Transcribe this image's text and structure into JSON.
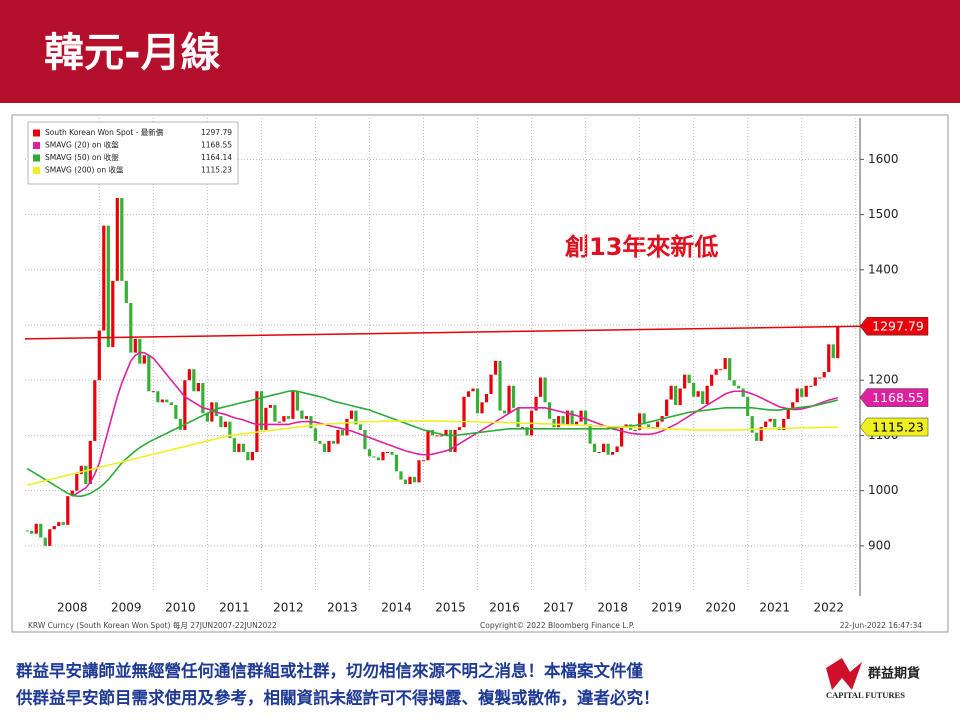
{
  "slide": {
    "title": "韓元-月線",
    "disclaimer": [
      "群益早安講師並無經營任何通信群組或社群，切勿相信來源不明之消息！本檔案文件僅",
      "供群益早安節目需求使用及參考，相關資訊未經許可不得揭露、複製或散佈，違者必究！"
    ],
    "logo": {
      "name": "群益期貨",
      "english": "CAPITAL FUTURES"
    }
  },
  "chart_data": {
    "type": "candlestick",
    "annotation": "創13年來新低",
    "footer": [
      "KRW Curncy (South Korean Won Spot) 每月 27JUN2007-22JUN2022",
      "Copyright© 2022 Bloomberg Finance L.P.",
      "22-Jun-2022 16:47:34"
    ],
    "categories": [
      null,
      null,
      null,
      null,
      null,
      null,
      null,
      null,
      null,
      null,
      "2008",
      null,
      null,
      null,
      null,
      null,
      null,
      null,
      null,
      null,
      null,
      null,
      "2009",
      null,
      null,
      null,
      null,
      null,
      null,
      null,
      null,
      null,
      null,
      null,
      "2010",
      null,
      null,
      null,
      null,
      null,
      null,
      null,
      null,
      null,
      null,
      null,
      "2011",
      null,
      null,
      null,
      null,
      null,
      null,
      null,
      null,
      null,
      null,
      null,
      "2012",
      null,
      null,
      null,
      null,
      null,
      null,
      null,
      null,
      null,
      null,
      null,
      "2013",
      null,
      null,
      null,
      null,
      null,
      null,
      null,
      null,
      null,
      null,
      null,
      "2014",
      null,
      null,
      null,
      null,
      null,
      null,
      null,
      null,
      null,
      null,
      null,
      "2015",
      null,
      null,
      null,
      null,
      null,
      null,
      null,
      null,
      null,
      null,
      null,
      "2016",
      null,
      null,
      null,
      null,
      null,
      null,
      null,
      null,
      null,
      null,
      null,
      "2017",
      null,
      null,
      null,
      null,
      null,
      null,
      null,
      null,
      null,
      null,
      null,
      "2018",
      null,
      null,
      null,
      null,
      null,
      null,
      null,
      null,
      null,
      null,
      null,
      "2019",
      null,
      null,
      null,
      null,
      null,
      null,
      null,
      null,
      null,
      null,
      null,
      "2020",
      null,
      null,
      null,
      null,
      null,
      null,
      null,
      null,
      null,
      null,
      null,
      "2021",
      null,
      null,
      null,
      null,
      null,
      null,
      null,
      null,
      null,
      null,
      null,
      "2022",
      null,
      null
    ],
    "series": [
      {
        "name": "South Korean Won Spot - 最新價",
        "type": "candlestick",
        "color": "#e8000b",
        "up_color": "#e8000b",
        "down_color": "#35b035",
        "label_tag": true,
        "values": [
          927,
          922,
          940,
          915,
          900,
          930,
          936,
          943,
          938,
          990,
          1000,
          1030,
          1045,
          1012,
          1090,
          1200,
          1290,
          1480,
          1260,
          1380,
          1530,
          1380,
          1340,
          1250,
          1275,
          1230,
          1245,
          1180,
          1180,
          1160,
          1165,
          1160,
          1155,
          1130,
          1110,
          1200,
          1220,
          1180,
          1195,
          1140,
          1125,
          1160,
          1135,
          1115,
          1125,
          1095,
          1070,
          1085,
          1070,
          1055,
          1070,
          1180,
          1110,
          1150,
          1155,
          1125,
          1125,
          1135,
          1130,
          1180,
          1145,
          1130,
          1135,
          1113,
          1090,
          1085,
          1070,
          1090,
          1085,
          1110,
          1100,
          1130,
          1145,
          1120,
          1110,
          1075,
          1062,
          1060,
          1055,
          1070,
          1070,
          1065,
          1035,
          1020,
          1012,
          1025,
          1015,
          1055,
          1055,
          1110,
          1100,
          1100,
          1100,
          1110,
          1070,
          1110,
          1115,
          1170,
          1180,
          1185,
          1140,
          1160,
          1175,
          1210,
          1235,
          1145,
          1140,
          1190,
          1150,
          1115,
          1115,
          1100,
          1145,
          1170,
          1205,
          1160,
          1130,
          1115,
          1135,
          1120,
          1145,
          1120,
          1125,
          1145,
          1120,
          1085,
          1070,
          1070,
          1085,
          1065,
          1070,
          1080,
          1115,
          1120,
          1110,
          1110,
          1140,
          1120,
          1115,
          1115,
          1125,
          1135,
          1165,
          1190,
          1155,
          1185,
          1210,
          1195,
          1170,
          1180,
          1157,
          1190,
          1210,
          1220,
          1220,
          1240,
          1200,
          1190,
          1185,
          1170,
          1135,
          1105,
          1090,
          1115,
          1125,
          1130,
          1115,
          1110,
          1130,
          1150,
          1160,
          1185,
          1170,
          1190,
          1190,
          1205,
          1205,
          1215,
          1265,
          1240,
          1297.79
        ]
      },
      {
        "name": "SMAVG (20)  on 收盤",
        "type": "line",
        "color": "#e020a0",
        "label_tag": true,
        "tag_text": "#ffffff",
        "values": [
          null,
          null,
          null,
          null,
          null,
          null,
          null,
          null,
          null,
          null,
          990,
          995,
          1000,
          1005,
          1015,
          1030,
          1050,
          1080,
          1110,
          1140,
          1170,
          1195,
          1215,
          1235,
          1245,
          1250,
          1250,
          1245,
          1240,
          1230,
          1220,
          1210,
          1200,
          1190,
          1180,
          1170,
          1165,
          1160,
          1155,
          1150,
          1148,
          1145,
          1142,
          1140,
          1138,
          1135,
          1132,
          1130,
          1128,
          1125,
          1122,
          1120,
          1120,
          1120,
          1120,
          1120,
          1120,
          1120,
          1120,
          1122,
          1124,
          1125,
          1125,
          1125,
          1124,
          1122,
          1120,
          1118,
          1116,
          1114,
          1112,
          1110,
          1108,
          1105,
          1102,
          1099,
          1096,
          1093,
          1090,
          1087,
          1084,
          1081,
          1078,
          1075,
          1072,
          1070,
          1068,
          1066,
          1065,
          1065,
          1066,
          1068,
          1070,
          1072,
          1075,
          1080,
          1085,
          1090,
          1095,
          1100,
          1105,
          1110,
          1115,
          1120,
          1125,
          1130,
          1135,
          1140,
          1145,
          1150,
          1150,
          1150,
          1150,
          1150,
          1150,
          1150,
          1148,
          1146,
          1144,
          1142,
          1140,
          1138,
          1136,
          1133,
          1130,
          1127,
          1124,
          1121,
          1118,
          1115,
          1112,
          1110,
          1108,
          1106,
          1104,
          1103,
          1102,
          1102,
          1102,
          1103,
          1105,
          1108,
          1112,
          1116,
          1120,
          1125,
          1130,
          1135,
          1140,
          1145,
          1150,
          1155,
          1160,
          1165,
          1170,
          1175,
          1178,
          1180,
          1180,
          1180,
          1178,
          1175,
          1172,
          1168,
          1164,
          1160,
          1156,
          1152,
          1150,
          1148,
          1147,
          1147,
          1148,
          1150,
          1152,
          1155,
          1158,
          1161,
          1164,
          1166,
          1168.55
        ]
      },
      {
        "name": "SMAVG (50)  on 收盤",
        "type": "line",
        "color": "#2eaa3a",
        "label_tag": false,
        "values": [
          1040,
          1035,
          1030,
          1025,
          1020,
          1015,
          1010,
          1005,
          1000,
          995,
          992,
          990,
          990,
          992,
          995,
          1000,
          1005,
          1012,
          1020,
          1030,
          1040,
          1050,
          1058,
          1065,
          1072,
          1078,
          1083,
          1088,
          1092,
          1096,
          1100,
          1104,
          1108,
          1112,
          1116,
          1120,
          1124,
          1128,
          1132,
          1136,
          1140,
          1144,
          1148,
          1150,
          1152,
          1154,
          1156,
          1158,
          1160,
          1162,
          1164,
          1166,
          1168,
          1170,
          1172,
          1174,
          1176,
          1178,
          1180,
          1181,
          1180,
          1178,
          1176,
          1174,
          1172,
          1170,
          1168,
          1165,
          1162,
          1160,
          1158,
          1156,
          1154,
          1152,
          1150,
          1148,
          1146,
          1143,
          1140,
          1137,
          1134,
          1131,
          1128,
          1125,
          1122,
          1119,
          1116,
          1113,
          1110,
          1108,
          1106,
          1104,
          1102,
          1100,
          1100,
          1100,
          1101,
          1102,
          1103,
          1104,
          1105,
          1106,
          1107,
          1108,
          1109,
          1110,
          1111,
          1112,
          1112,
          1112,
          1112,
          1112,
          1112,
          1112,
          1112,
          1112,
          1112,
          1112,
          1112,
          1112,
          1112,
          1112,
          1112,
          1112,
          1112,
          1112,
          1112,
          1112,
          1112,
          1112,
          1113,
          1114,
          1115,
          1116,
          1117,
          1118,
          1120,
          1122,
          1124,
          1126,
          1128,
          1130,
          1132,
          1134,
          1136,
          1138,
          1140,
          1142,
          1143,
          1144,
          1145,
          1146,
          1147,
          1148,
          1149,
          1150,
          1150,
          1150,
          1150,
          1150,
          1150,
          1150,
          1149,
          1148,
          1147,
          1146,
          1146,
          1146,
          1147,
          1148,
          1149,
          1150,
          1151,
          1152,
          1153,
          1154,
          1156,
          1158,
          1160,
          1162,
          1164.14
        ]
      },
      {
        "name": "SMAVG (200)  on 收盤",
        "type": "line",
        "color": "#f0f020",
        "label_tag": true,
        "tag_text": "#000000",
        "values": [
          1010,
          1012,
          1014,
          1016,
          1018,
          1020,
          1022,
          1024,
          1026,
          1028,
          1030,
          1032,
          1034,
          1036,
          1038,
          1040,
          1042,
          1044,
          1046,
          1048,
          1050,
          1052,
          1054,
          1056,
          1058,
          1060,
          1062,
          1064,
          1066,
          1068,
          1070,
          1072,
          1074,
          1076,
          1078,
          1080,
          1082,
          1084,
          1086,
          1088,
          1090,
          1092,
          1094,
          1096,
          1098,
          1100,
          1101,
          1102,
          1103,
          1104,
          1105,
          1106,
          1107,
          1108,
          1109,
          1110,
          1111,
          1112,
          1113,
          1114,
          1115,
          1116,
          1117,
          1118,
          1119,
          1120,
          1120,
          1121,
          1121,
          1122,
          1122,
          1123,
          1123,
          1124,
          1124,
          1125,
          1125,
          1125,
          1125,
          1126,
          1126,
          1126,
          1126,
          1126,
          1126,
          1126,
          1126,
          1126,
          1126,
          1126,
          1126,
          1126,
          1126,
          1126,
          1125,
          1125,
          1125,
          1125,
          1125,
          1125,
          1125,
          1124,
          1124,
          1124,
          1124,
          1124,
          1123,
          1123,
          1123,
          1123,
          1122,
          1122,
          1122,
          1122,
          1121,
          1121,
          1121,
          1120,
          1120,
          1120,
          1119,
          1119,
          1119,
          1118,
          1118,
          1118,
          1117,
          1117,
          1117,
          1116,
          1116,
          1116,
          1115,
          1115,
          1115,
          1114,
          1114,
          1114,
          1113,
          1113,
          1113,
          1112,
          1112,
          1112,
          1111,
          1111,
          1111,
          1110,
          1110,
          1110,
          1110,
          1110,
          1110,
          1110,
          1110,
          1110,
          1110,
          1110,
          1110,
          1110,
          1111,
          1111,
          1111,
          1111,
          1112,
          1112,
          1112,
          1113,
          1113,
          1113,
          1113,
          1114,
          1114,
          1114,
          1114,
          1114,
          1114,
          1115,
          1115,
          1115,
          1115.23
        ]
      }
    ],
    "trendline": {
      "color": "#e8000b",
      "values": [
        1275,
        1297.79
      ]
    },
    "ylim": [
      820,
      1675
    ],
    "yticks": [
      900,
      1000,
      1100,
      1200,
      1300,
      1400,
      1500,
      1600
    ],
    "grid": true,
    "legend": "upper left"
  }
}
